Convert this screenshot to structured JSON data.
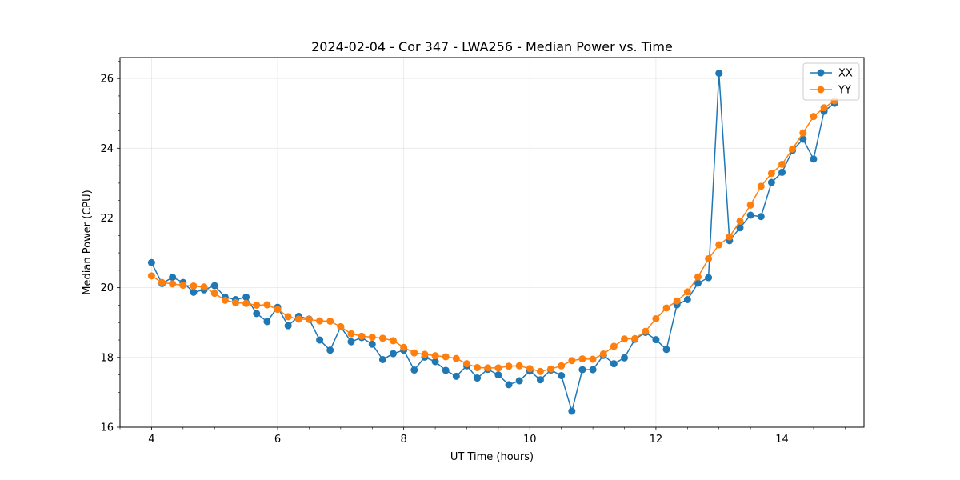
{
  "chart_data": {
    "type": "line",
    "title": "2024-02-04 - Cor 347 - LWA256 - Median Power vs. Time",
    "xlabel": "UT Time (hours)",
    "ylabel": "Median Power (CPU)",
    "xlim": [
      3.5,
      15.3
    ],
    "ylim": [
      16.0,
      26.6
    ],
    "xticks": [
      4,
      6,
      8,
      10,
      12,
      14
    ],
    "yticks": [
      16,
      18,
      20,
      22,
      24,
      26
    ],
    "grid": true,
    "legend": "top-right",
    "x": [
      4.0,
      4.1667,
      4.3333,
      4.5,
      4.6667,
      4.8333,
      5.0,
      5.1667,
      5.3333,
      5.5,
      5.6667,
      5.8333,
      6.0,
      6.1667,
      6.3333,
      6.5,
      6.6667,
      6.8333,
      7.0,
      7.1667,
      7.3333,
      7.5,
      7.6667,
      7.8333,
      8.0,
      8.1667,
      8.3333,
      8.5,
      8.6667,
      8.8333,
      9.0,
      9.1667,
      9.3333,
      9.5,
      9.6667,
      9.8333,
      10.0,
      10.1667,
      10.3333,
      10.5,
      10.6667,
      10.8333,
      11.0,
      11.1667,
      11.3333,
      11.5,
      11.6667,
      11.8333,
      12.0,
      12.1667,
      12.3333,
      12.5,
      12.6667,
      12.8333,
      13.0,
      13.1667,
      13.3333,
      13.5,
      13.6667,
      13.8333,
      14.0,
      14.1667,
      14.3333,
      14.5,
      14.6667,
      14.8333
    ],
    "series": [
      {
        "name": "XX",
        "color": "#1f77b4",
        "values": [
          20.72,
          20.12,
          20.3,
          20.15,
          19.87,
          19.94,
          20.06,
          19.73,
          19.66,
          19.73,
          19.26,
          19.03,
          19.44,
          18.91,
          19.18,
          19.1,
          18.5,
          18.21,
          18.88,
          18.45,
          18.57,
          18.38,
          17.94,
          18.11,
          18.21,
          17.64,
          18.01,
          17.88,
          17.63,
          17.46,
          17.76,
          17.41,
          17.66,
          17.5,
          17.22,
          17.33,
          17.61,
          17.36,
          17.64,
          17.48,
          16.46,
          17.65,
          17.65,
          18.06,
          17.82,
          17.99,
          18.52,
          18.72,
          18.51,
          18.23,
          19.51,
          19.66,
          20.13,
          20.29,
          26.15,
          21.35,
          21.72,
          22.08,
          22.04,
          23.02,
          23.31,
          23.94,
          24.26,
          23.69,
          25.06,
          25.29
        ]
      },
      {
        "name": "YY",
        "color": "#ff7f0e",
        "values": [
          20.34,
          20.15,
          20.11,
          20.07,
          20.05,
          20.02,
          19.84,
          19.64,
          19.57,
          19.55,
          19.5,
          19.51,
          19.38,
          19.17,
          19.1,
          19.09,
          19.05,
          19.04,
          18.88,
          18.68,
          18.61,
          18.58,
          18.55,
          18.48,
          18.29,
          18.13,
          18.09,
          18.05,
          18.02,
          17.97,
          17.82,
          17.71,
          17.7,
          17.7,
          17.75,
          17.76,
          17.68,
          17.6,
          17.67,
          17.76,
          17.91,
          17.96,
          17.95,
          18.1,
          18.32,
          18.53,
          18.54,
          18.75,
          19.11,
          19.42,
          19.62,
          19.88,
          20.31,
          20.83,
          21.23,
          21.46,
          21.91,
          22.37,
          22.91,
          23.28,
          23.54,
          23.98,
          24.44,
          24.91,
          25.16,
          25.36
        ]
      }
    ]
  }
}
